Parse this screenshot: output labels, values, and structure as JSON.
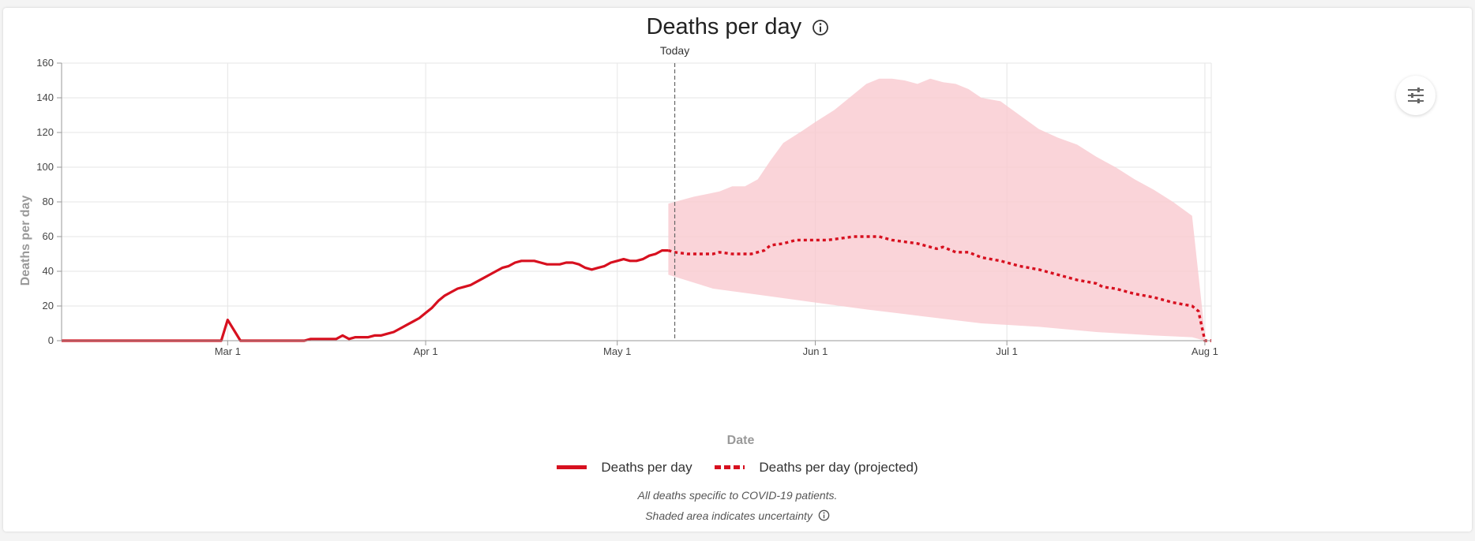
{
  "header": {
    "title": "Deaths per day",
    "info_icon": "info-circle-icon"
  },
  "controls": {
    "settings_icon": "sliders-icon"
  },
  "chart_data": {
    "type": "line",
    "title": "Deaths per day",
    "xlabel": "Date",
    "ylabel": "Deaths per day",
    "ylim": [
      0,
      160
    ],
    "yticks": [
      0,
      20,
      40,
      60,
      80,
      100,
      120,
      140,
      160
    ],
    "xlim": [
      "2020-02-04",
      "2020-08-02"
    ],
    "xticks": [
      {
        "date": "2020-03-01",
        "label": "Mar 1"
      },
      {
        "date": "2020-04-01",
        "label": "Apr 1"
      },
      {
        "date": "2020-05-01",
        "label": "May 1"
      },
      {
        "date": "2020-06-01",
        "label": "Jun 1"
      },
      {
        "date": "2020-07-01",
        "label": "Jul 1"
      },
      {
        "date": "2020-08-01",
        "label": "Aug 1"
      }
    ],
    "today": {
      "date": "2020-05-10",
      "label": "Today"
    },
    "grid": true,
    "legend_position": "bottom-center",
    "colors": {
      "line": "#d7101f",
      "band": "#f9c9cf"
    },
    "series": [
      {
        "name": "Deaths per day",
        "style": "solid",
        "points": [
          [
            "2020-02-04",
            0
          ],
          [
            "2020-02-29",
            0
          ],
          [
            "2020-03-01",
            12
          ],
          [
            "2020-03-03",
            0
          ],
          [
            "2020-03-13",
            0
          ],
          [
            "2020-03-14",
            1
          ],
          [
            "2020-03-18",
            1
          ],
          [
            "2020-03-19",
            3
          ],
          [
            "2020-03-20",
            1
          ],
          [
            "2020-03-21",
            2
          ],
          [
            "2020-03-23",
            2
          ],
          [
            "2020-03-24",
            3
          ],
          [
            "2020-03-25",
            3
          ],
          [
            "2020-03-26",
            4
          ],
          [
            "2020-03-27",
            5
          ],
          [
            "2020-03-28",
            7
          ],
          [
            "2020-03-29",
            9
          ],
          [
            "2020-03-30",
            11
          ],
          [
            "2020-03-31",
            13
          ],
          [
            "2020-04-01",
            16
          ],
          [
            "2020-04-02",
            19
          ],
          [
            "2020-04-03",
            23
          ],
          [
            "2020-04-04",
            26
          ],
          [
            "2020-04-05",
            28
          ],
          [
            "2020-04-06",
            30
          ],
          [
            "2020-04-07",
            31
          ],
          [
            "2020-04-08",
            32
          ],
          [
            "2020-04-09",
            34
          ],
          [
            "2020-04-10",
            36
          ],
          [
            "2020-04-11",
            38
          ],
          [
            "2020-04-12",
            40
          ],
          [
            "2020-04-13",
            42
          ],
          [
            "2020-04-14",
            43
          ],
          [
            "2020-04-15",
            45
          ],
          [
            "2020-04-16",
            46
          ],
          [
            "2020-04-17",
            46
          ],
          [
            "2020-04-18",
            46
          ],
          [
            "2020-04-19",
            45
          ],
          [
            "2020-04-20",
            44
          ],
          [
            "2020-04-21",
            44
          ],
          [
            "2020-04-22",
            44
          ],
          [
            "2020-04-23",
            45
          ],
          [
            "2020-04-24",
            45
          ],
          [
            "2020-04-25",
            44
          ],
          [
            "2020-04-26",
            42
          ],
          [
            "2020-04-27",
            41
          ],
          [
            "2020-04-28",
            42
          ],
          [
            "2020-04-29",
            43
          ],
          [
            "2020-04-30",
            45
          ],
          [
            "2020-05-01",
            46
          ],
          [
            "2020-05-02",
            47
          ],
          [
            "2020-05-03",
            46
          ],
          [
            "2020-05-04",
            46
          ],
          [
            "2020-05-05",
            47
          ],
          [
            "2020-05-06",
            49
          ],
          [
            "2020-05-07",
            50
          ],
          [
            "2020-05-08",
            52
          ],
          [
            "2020-05-09",
            52
          ]
        ]
      },
      {
        "name": "Deaths per day (projected)",
        "style": "dashed",
        "points": [
          [
            "2020-05-09",
            52
          ],
          [
            "2020-05-10",
            51
          ],
          [
            "2020-05-12",
            50
          ],
          [
            "2020-05-14",
            50
          ],
          [
            "2020-05-16",
            50
          ],
          [
            "2020-05-17",
            51
          ],
          [
            "2020-05-19",
            50
          ],
          [
            "2020-05-22",
            50
          ],
          [
            "2020-05-24",
            52
          ],
          [
            "2020-05-25",
            55
          ],
          [
            "2020-05-27",
            56
          ],
          [
            "2020-05-29",
            58
          ],
          [
            "2020-06-01",
            58
          ],
          [
            "2020-06-03",
            58
          ],
          [
            "2020-06-05",
            59
          ],
          [
            "2020-06-07",
            60
          ],
          [
            "2020-06-11",
            60
          ],
          [
            "2020-06-13",
            58
          ],
          [
            "2020-06-15",
            57
          ],
          [
            "2020-06-17",
            56
          ],
          [
            "2020-06-19",
            54
          ],
          [
            "2020-06-20",
            53
          ],
          [
            "2020-06-21",
            54
          ],
          [
            "2020-06-23",
            51
          ],
          [
            "2020-06-25",
            51
          ],
          [
            "2020-06-27",
            48
          ],
          [
            "2020-06-30",
            46
          ],
          [
            "2020-07-03",
            43
          ],
          [
            "2020-07-06",
            41
          ],
          [
            "2020-07-09",
            38
          ],
          [
            "2020-07-12",
            35
          ],
          [
            "2020-07-15",
            33
          ],
          [
            "2020-07-16",
            31
          ],
          [
            "2020-07-18",
            30
          ],
          [
            "2020-07-21",
            27
          ],
          [
            "2020-07-24",
            25
          ],
          [
            "2020-07-27",
            22
          ],
          [
            "2020-07-30",
            20
          ],
          [
            "2020-07-31",
            17
          ],
          [
            "2020-08-01",
            0
          ],
          [
            "2020-08-02",
            0
          ]
        ]
      }
    ],
    "uncertainty_band": {
      "upper": [
        [
          "2020-05-09",
          79
        ],
        [
          "2020-05-13",
          83
        ],
        [
          "2020-05-17",
          86
        ],
        [
          "2020-05-19",
          89
        ],
        [
          "2020-05-21",
          89
        ],
        [
          "2020-05-23",
          93
        ],
        [
          "2020-05-25",
          104
        ],
        [
          "2020-05-27",
          114
        ],
        [
          "2020-05-30",
          121
        ],
        [
          "2020-06-01",
          126
        ],
        [
          "2020-06-04",
          133
        ],
        [
          "2020-06-07",
          142
        ],
        [
          "2020-06-09",
          148
        ],
        [
          "2020-06-11",
          151
        ],
        [
          "2020-06-13",
          151
        ],
        [
          "2020-06-15",
          150
        ],
        [
          "2020-06-17",
          148
        ],
        [
          "2020-06-19",
          151
        ],
        [
          "2020-06-21",
          149
        ],
        [
          "2020-06-23",
          148
        ],
        [
          "2020-06-25",
          145
        ],
        [
          "2020-06-27",
          140
        ],
        [
          "2020-06-30",
          138
        ],
        [
          "2020-07-03",
          130
        ],
        [
          "2020-07-06",
          122
        ],
        [
          "2020-07-09",
          117
        ],
        [
          "2020-07-12",
          113
        ],
        [
          "2020-07-15",
          106
        ],
        [
          "2020-07-18",
          100
        ],
        [
          "2020-07-21",
          93
        ],
        [
          "2020-07-24",
          87
        ],
        [
          "2020-07-27",
          80
        ],
        [
          "2020-07-30",
          72
        ],
        [
          "2020-08-01",
          4
        ]
      ],
      "lower": [
        [
          "2020-08-01",
          0
        ],
        [
          "2020-07-30",
          2
        ],
        [
          "2020-07-24",
          3
        ],
        [
          "2020-07-15",
          5
        ],
        [
          "2020-07-06",
          8
        ],
        [
          "2020-06-27",
          10
        ],
        [
          "2020-06-18",
          14
        ],
        [
          "2020-06-09",
          18
        ],
        [
          "2020-06-01",
          22
        ],
        [
          "2020-05-24",
          26
        ],
        [
          "2020-05-16",
          30
        ],
        [
          "2020-05-09",
          38
        ]
      ]
    }
  },
  "legend": {
    "actual": "Deaths per day",
    "projected": "Deaths per day (projected)"
  },
  "notes": {
    "line1": "All deaths specific to COVID-19 patients.",
    "line2": "Shaded area indicates uncertainty"
  }
}
